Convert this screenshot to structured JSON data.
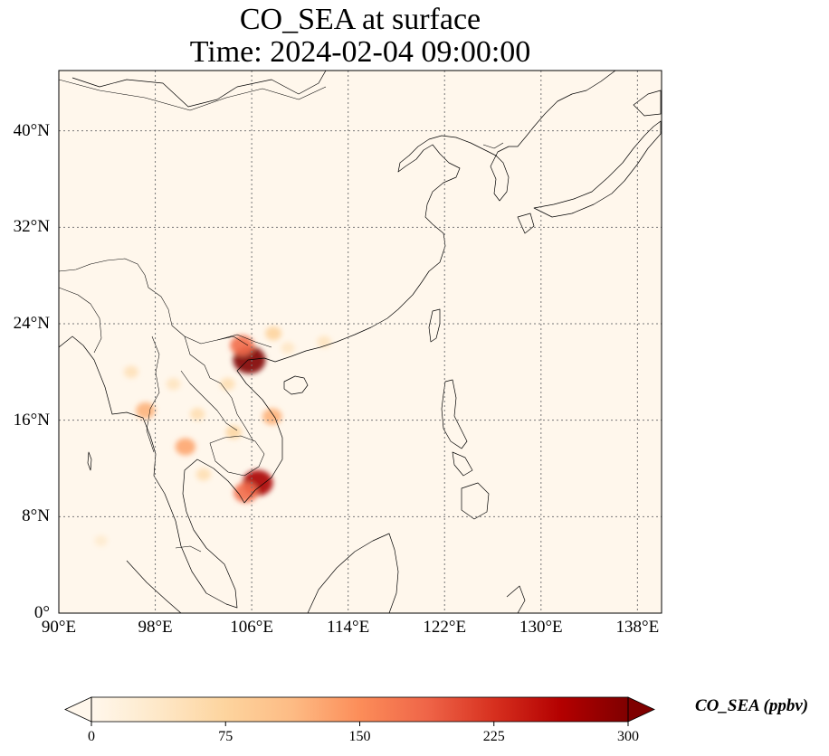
{
  "title": {
    "line1": "CO_SEA at surface",
    "line2": "Time: 2024-02-04 09:00:00"
  },
  "map": {
    "projection": "PlateCarree",
    "lon_range": [
      90,
      140
    ],
    "lat_range": [
      0,
      45
    ],
    "gridlines": "dotted",
    "lat_ticks": [
      {
        "value": 0,
        "label": "0°"
      },
      {
        "value": 8,
        "label": "8°N"
      },
      {
        "value": 16,
        "label": "16°N"
      },
      {
        "value": 24,
        "label": "24°N"
      },
      {
        "value": 32,
        "label": "32°N"
      },
      {
        "value": 40,
        "label": "40°N"
      }
    ],
    "lon_ticks": [
      {
        "value": 90,
        "label": "90°E"
      },
      {
        "value": 98,
        "label": "98°E"
      },
      {
        "value": 106,
        "label": "106°E"
      },
      {
        "value": 114,
        "label": "114°E"
      },
      {
        "value": 122,
        "label": "122°E"
      },
      {
        "value": 130,
        "label": "130°E"
      },
      {
        "value": 138,
        "label": "138°E"
      }
    ],
    "hotspots": [
      {
        "lon": 105.8,
        "lat": 21.0,
        "value": 300
      },
      {
        "lon": 105.2,
        "lat": 22.2,
        "value": 180
      },
      {
        "lon": 106.5,
        "lat": 10.8,
        "value": 270
      },
      {
        "lon": 105.5,
        "lat": 10.0,
        "value": 180
      },
      {
        "lon": 107.7,
        "lat": 16.3,
        "value": 120
      },
      {
        "lon": 97.2,
        "lat": 16.8,
        "value": 120
      },
      {
        "lon": 100.5,
        "lat": 13.8,
        "value": 130
      },
      {
        "lon": 104.5,
        "lat": 15.0,
        "value": 70
      },
      {
        "lon": 101.5,
        "lat": 16.5,
        "value": 55
      },
      {
        "lon": 96.0,
        "lat": 20.0,
        "value": 50
      },
      {
        "lon": 99.5,
        "lat": 19.0,
        "value": 45
      },
      {
        "lon": 104.0,
        "lat": 19.0,
        "value": 55
      },
      {
        "lon": 102.0,
        "lat": 11.5,
        "value": 55
      },
      {
        "lon": 112.0,
        "lat": 22.5,
        "value": 45
      },
      {
        "lon": 109.0,
        "lat": 22.0,
        "value": 40
      },
      {
        "lon": 107.8,
        "lat": 23.2,
        "value": 75
      },
      {
        "lon": 93.5,
        "lat": 6.0,
        "value": 30
      }
    ]
  },
  "colorbar": {
    "label": "CO_SEA (ppbv)",
    "cmap": "OrRd",
    "extend": "both",
    "range": [
      0,
      300
    ],
    "ticks": [
      "0",
      "75",
      "150",
      "225",
      "300"
    ],
    "colors": [
      "#fff7ec",
      "#fee8c8",
      "#fdd49e",
      "#fdbb84",
      "#fc8d59",
      "#ef6548",
      "#d7301f",
      "#b30000",
      "#7f0000"
    ]
  }
}
